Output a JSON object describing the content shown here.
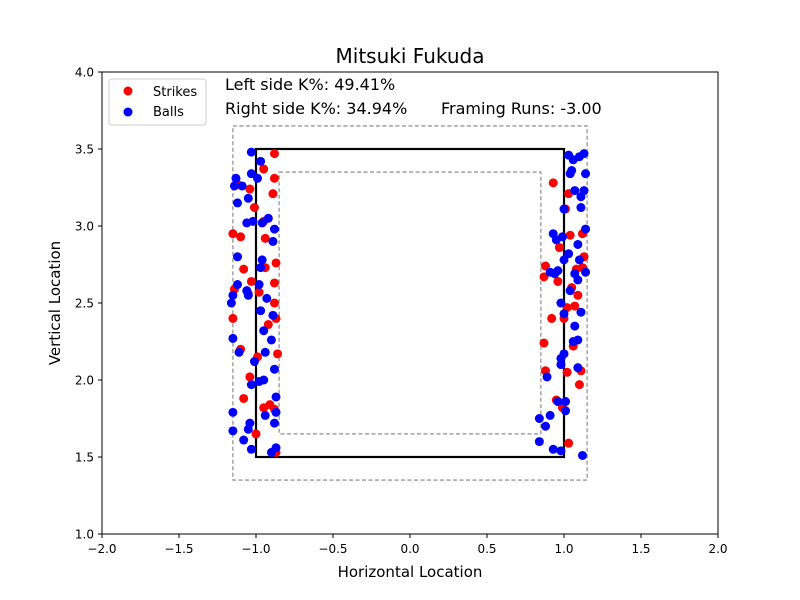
{
  "chart_data": {
    "type": "scatter",
    "title": "Mitsuki Fukuda",
    "xlabel": "Horizontal Location",
    "ylabel": "Vertical Location",
    "xlim": [
      -2.0,
      2.0
    ],
    "ylim": [
      1.0,
      4.0
    ],
    "xticks": [
      -2.0,
      -1.5,
      -1.0,
      -0.5,
      0.0,
      0.5,
      1.0,
      1.5,
      2.0
    ],
    "xtick_labels": [
      "−2.0",
      "−1.5",
      "−1.0",
      "−0.5",
      "0.0",
      "0.5",
      "1.0",
      "1.5",
      "2.0"
    ],
    "yticks": [
      1.0,
      1.5,
      2.0,
      2.5,
      3.0,
      3.5,
      4.0
    ],
    "ytick_labels": [
      "1.0",
      "1.5",
      "2.0",
      "2.5",
      "3.0",
      "3.5",
      "4.0"
    ],
    "grid": false,
    "legend_position": "top-left",
    "annotations": {
      "left_k": "Left side K%: 49.41%",
      "right_k": "Right side K%: 34.94%",
      "framing": "Framing Runs: -3.00"
    },
    "zones": {
      "strike_zone": {
        "x": [
          -1.0,
          1.0
        ],
        "y": [
          1.5,
          3.5
        ],
        "color": "#000000",
        "style": "solid"
      },
      "outer_zone": {
        "x": [
          -1.15,
          1.15
        ],
        "y": [
          1.35,
          3.65
        ],
        "color": "#808080",
        "style": "dashed"
      },
      "inner_zone": {
        "x": [
          -0.85,
          0.85
        ],
        "y": [
          1.65,
          3.35
        ],
        "color": "#808080",
        "style": "dashed"
      }
    },
    "series": [
      {
        "name": "Strikes",
        "color": "#ff0000",
        "points": [
          [
            -1.12,
            3.27
          ],
          [
            -1.04,
            3.24
          ],
          [
            -0.95,
            3.37
          ],
          [
            -0.88,
            3.47
          ],
          [
            -0.88,
            3.31
          ],
          [
            -0.89,
            3.21
          ],
          [
            -1.01,
            3.12
          ],
          [
            -0.95,
            3.03
          ],
          [
            -0.94,
            2.92
          ],
          [
            -1.15,
            2.95
          ],
          [
            -1.1,
            2.93
          ],
          [
            -0.87,
            2.76
          ],
          [
            -1.08,
            2.72
          ],
          [
            -0.94,
            2.73
          ],
          [
            -1.03,
            2.64
          ],
          [
            -0.88,
            2.63
          ],
          [
            -1.14,
            2.59
          ],
          [
            -0.98,
            2.57
          ],
          [
            -1.05,
            2.56
          ],
          [
            -1.15,
            2.4
          ],
          [
            -0.87,
            2.4
          ],
          [
            -0.88,
            2.5
          ],
          [
            -0.92,
            2.36
          ],
          [
            -1.1,
            2.2
          ],
          [
            -0.99,
            2.15
          ],
          [
            -0.86,
            2.17
          ],
          [
            -1.04,
            2.02
          ],
          [
            -1.08,
            1.88
          ],
          [
            -0.91,
            1.84
          ],
          [
            -0.95,
            1.82
          ],
          [
            -0.88,
            1.81
          ],
          [
            -1.0,
            1.65
          ],
          [
            -0.87,
            1.53
          ],
          [
            0.93,
            3.28
          ],
          [
            1.01,
            3.11
          ],
          [
            1.03,
            3.21
          ],
          [
            0.97,
            2.86
          ],
          [
            1.04,
            2.94
          ],
          [
            1.12,
            2.95
          ],
          [
            1.08,
            2.72
          ],
          [
            1.12,
            2.73
          ],
          [
            1.13,
            2.8
          ],
          [
            0.88,
            2.74
          ],
          [
            0.87,
            2.67
          ],
          [
            0.96,
            2.64
          ],
          [
            1.05,
            2.6
          ],
          [
            1.09,
            2.55
          ],
          [
            1.02,
            2.47
          ],
          [
            1.07,
            2.48
          ],
          [
            1.0,
            2.4
          ],
          [
            0.92,
            2.4
          ],
          [
            0.87,
            2.24
          ],
          [
            1.06,
            2.22
          ],
          [
            0.88,
            2.06
          ],
          [
            1.11,
            2.06
          ],
          [
            1.02,
            2.05
          ],
          [
            1.1,
            1.97
          ],
          [
            0.95,
            1.87
          ],
          [
            0.99,
            1.82
          ],
          [
            1.03,
            1.59
          ]
        ]
      },
      {
        "name": "Balls",
        "color": "#0000ff",
        "points": [
          [
            -1.03,
            3.48
          ],
          [
            -0.97,
            3.42
          ],
          [
            -1.03,
            3.34
          ],
          [
            -0.99,
            3.31
          ],
          [
            -1.13,
            3.31
          ],
          [
            -1.09,
            3.26
          ],
          [
            -1.14,
            3.26
          ],
          [
            -1.12,
            3.15
          ],
          [
            -1.05,
            3.18
          ],
          [
            -0.92,
            3.05
          ],
          [
            -0.96,
            3.02
          ],
          [
            -1.06,
            3.02
          ],
          [
            -1.02,
            3.03
          ],
          [
            -0.88,
            2.98
          ],
          [
            -0.89,
            2.9
          ],
          [
            -1.12,
            2.8
          ],
          [
            -0.96,
            2.78
          ],
          [
            -0.97,
            2.73
          ],
          [
            -0.98,
            2.62
          ],
          [
            -1.12,
            2.62
          ],
          [
            -1.06,
            2.58
          ],
          [
            -1.05,
            2.55
          ],
          [
            -0.93,
            2.53
          ],
          [
            -1.15,
            2.55
          ],
          [
            -1.16,
            2.5
          ],
          [
            -0.97,
            2.45
          ],
          [
            -0.89,
            2.42
          ],
          [
            -0.95,
            2.32
          ],
          [
            -0.9,
            2.26
          ],
          [
            -1.15,
            2.27
          ],
          [
            -1.11,
            2.18
          ],
          [
            -0.94,
            2.18
          ],
          [
            -1.01,
            2.12
          ],
          [
            -0.88,
            2.07
          ],
          [
            -0.98,
            1.99
          ],
          [
            -0.95,
            2.0
          ],
          [
            -1.03,
            1.97
          ],
          [
            -0.87,
            1.89
          ],
          [
            -1.15,
            1.79
          ],
          [
            -0.87,
            1.79
          ],
          [
            -0.94,
            1.77
          ],
          [
            -1.04,
            1.72
          ],
          [
            -1.05,
            1.68
          ],
          [
            -1.15,
            1.67
          ],
          [
            -0.88,
            1.72
          ],
          [
            -1.08,
            1.61
          ],
          [
            -0.87,
            1.56
          ],
          [
            -1.03,
            1.55
          ],
          [
            -0.9,
            1.53
          ],
          [
            1.03,
            3.46
          ],
          [
            1.1,
            3.45
          ],
          [
            1.13,
            3.47
          ],
          [
            1.06,
            3.43
          ],
          [
            1.14,
            3.34
          ],
          [
            1.05,
            3.36
          ],
          [
            1.04,
            3.34
          ],
          [
            1.07,
            3.23
          ],
          [
            1.13,
            3.23
          ],
          [
            1.11,
            3.19
          ],
          [
            1.11,
            3.12
          ],
          [
            1.0,
            3.11
          ],
          [
            1.14,
            2.98
          ],
          [
            0.99,
            2.93
          ],
          [
            0.93,
            2.95
          ],
          [
            0.95,
            2.91
          ],
          [
            1.09,
            2.88
          ],
          [
            1.03,
            2.82
          ],
          [
            1.0,
            2.78
          ],
          [
            1.1,
            2.78
          ],
          [
            0.91,
            2.7
          ],
          [
            0.96,
            2.71
          ],
          [
            0.94,
            2.69
          ],
          [
            1.07,
            2.69
          ],
          [
            1.14,
            2.7
          ],
          [
            1.09,
            2.65
          ],
          [
            1.04,
            2.58
          ],
          [
            0.98,
            2.5
          ],
          [
            1.11,
            2.44
          ],
          [
            1.0,
            2.43
          ],
          [
            1.07,
            2.35
          ],
          [
            1.06,
            2.25
          ],
          [
            1.09,
            2.26
          ],
          [
            0.98,
            2.14
          ],
          [
            1.0,
            2.17
          ],
          [
            0.89,
            2.02
          ],
          [
            0.98,
            2.1
          ],
          [
            1.09,
            2.08
          ],
          [
            1.01,
            1.86
          ],
          [
            1.01,
            1.8
          ],
          [
            0.84,
            1.75
          ],
          [
            0.91,
            1.77
          ],
          [
            0.88,
            1.7
          ],
          [
            0.96,
            1.86
          ],
          [
            0.84,
            1.6
          ],
          [
            0.93,
            1.55
          ],
          [
            1.12,
            1.51
          ],
          [
            0.98,
            1.54
          ]
        ]
      }
    ]
  }
}
